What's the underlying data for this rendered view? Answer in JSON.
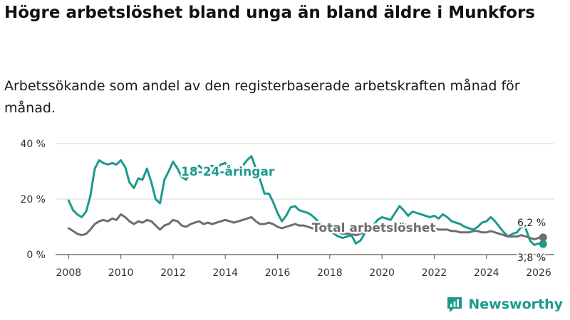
{
  "chart_data": {
    "type": "line",
    "title": "Högre arbetslöshet bland unga än bland äldre i Munkfors",
    "subtitle": "Arbetssökande som andel av den registerbaserade arbetskraften månad för månad.",
    "xlabel": "",
    "ylabel": "",
    "xlim": [
      2007.5,
      2026.6
    ],
    "ylim": [
      0,
      40
    ],
    "y_ticks": [
      0,
      20,
      40
    ],
    "y_tick_labels": [
      "0 %",
      "20 %",
      "40 %"
    ],
    "x_ticks": [
      2008,
      2010,
      2012,
      2014,
      2016,
      2018,
      2020,
      2022,
      2024,
      2026
    ],
    "x_tick_labels": [
      "2008",
      "2010",
      "2012",
      "2014",
      "2016",
      "2018",
      "2020",
      "2022",
      "2024",
      "2026"
    ],
    "grid": true,
    "series": [
      {
        "name": "18-24-åringar",
        "label": "18-24-åringar",
        "color": "#1b9a8c",
        "end_label": "3,8 %",
        "x": [
          2008.0,
          2008.17,
          2008.33,
          2008.5,
          2008.67,
          2008.83,
          2009.0,
          2009.17,
          2009.33,
          2009.5,
          2009.67,
          2009.83,
          2010.0,
          2010.17,
          2010.33,
          2010.5,
          2010.67,
          2010.83,
          2011.0,
          2011.17,
          2011.33,
          2011.5,
          2011.67,
          2011.83,
          2012.0,
          2012.17,
          2012.33,
          2012.5,
          2012.67,
          2012.83,
          2013.0,
          2013.17,
          2013.33,
          2013.5,
          2013.67,
          2013.83,
          2014.0,
          2014.17,
          2014.33,
          2014.5,
          2014.67,
          2014.83,
          2015.0,
          2015.17,
          2015.33,
          2015.5,
          2015.67,
          2015.83,
          2016.0,
          2016.17,
          2016.33,
          2016.5,
          2016.67,
          2016.83,
          2017.0,
          2017.17,
          2017.33,
          2017.5,
          2017.67,
          2017.83,
          2018.0,
          2018.17,
          2018.33,
          2018.5,
          2018.67,
          2018.83,
          2019.0,
          2019.17,
          2019.33,
          2019.5,
          2019.67,
          2019.83,
          2020.0,
          2020.17,
          2020.33,
          2020.5,
          2020.67,
          2020.83,
          2021.0,
          2021.17,
          2021.33,
          2021.5,
          2021.67,
          2021.83,
          2022.0,
          2022.17,
          2022.33,
          2022.5,
          2022.67,
          2022.83,
          2023.0,
          2023.17,
          2023.33,
          2023.5,
          2023.67,
          2023.83,
          2024.0,
          2024.17,
          2024.33,
          2024.5,
          2024.67,
          2024.83,
          2025.0,
          2025.17,
          2025.33,
          2025.5,
          2025.67,
          2025.83,
          2026.0,
          2026.17
        ],
        "values": [
          19.5,
          16.0,
          14.5,
          13.5,
          15.5,
          21.0,
          31.0,
          34.0,
          33.0,
          32.5,
          33.0,
          32.5,
          34.0,
          31.5,
          26.0,
          24.0,
          27.5,
          27.0,
          31.0,
          26.0,
          20.0,
          18.5,
          27.0,
          30.0,
          33.5,
          31.0,
          28.0,
          27.0,
          30.0,
          31.0,
          32.0,
          30.5,
          31.5,
          32.0,
          31.0,
          32.5,
          33.0,
          31.0,
          30.0,
          31.0,
          32.0,
          34.0,
          35.5,
          31.0,
          27.0,
          22.0,
          22.0,
          19.0,
          15.0,
          12.0,
          14.0,
          17.0,
          17.5,
          16.0,
          15.5,
          15.0,
          14.0,
          12.5,
          10.5,
          9.0,
          8.5,
          7.5,
          6.5,
          6.0,
          6.5,
          7.0,
          4.0,
          5.0,
          7.5,
          9.0,
          10.5,
          12.5,
          13.5,
          13.0,
          12.5,
          15.0,
          17.5,
          16.0,
          14.0,
          15.5,
          15.0,
          14.5,
          14.0,
          13.5,
          14.0,
          13.0,
          14.5,
          13.5,
          12.0,
          11.5,
          11.0,
          10.0,
          9.5,
          9.0,
          10.0,
          11.5,
          12.0,
          13.5,
          12.0,
          10.0,
          8.0,
          6.5,
          7.5,
          8.0,
          10.0,
          9.5,
          5.0,
          3.5,
          4.0,
          3.8
        ]
      },
      {
        "name": "Total arbetslöshet",
        "label": "Total arbetslöshet",
        "color": "#6e6e70",
        "end_label": "6,2 %",
        "x": [
          2008.0,
          2008.17,
          2008.33,
          2008.5,
          2008.67,
          2008.83,
          2009.0,
          2009.17,
          2009.33,
          2009.5,
          2009.67,
          2009.83,
          2010.0,
          2010.17,
          2010.33,
          2010.5,
          2010.67,
          2010.83,
          2011.0,
          2011.17,
          2011.33,
          2011.5,
          2011.67,
          2011.83,
          2012.0,
          2012.17,
          2012.33,
          2012.5,
          2012.67,
          2012.83,
          2013.0,
          2013.17,
          2013.33,
          2013.5,
          2013.67,
          2013.83,
          2014.0,
          2014.17,
          2014.33,
          2014.5,
          2014.67,
          2014.83,
          2015.0,
          2015.17,
          2015.33,
          2015.5,
          2015.67,
          2015.83,
          2016.0,
          2016.17,
          2016.33,
          2016.5,
          2016.67,
          2016.83,
          2017.0,
          2017.17,
          2017.33,
          2017.5,
          2017.67,
          2017.83,
          2018.0,
          2018.17,
          2018.33,
          2018.5,
          2018.67,
          2018.83,
          2019.0,
          2019.17,
          2019.33,
          2019.5,
          2019.67,
          2019.83,
          2020.0,
          2020.17,
          2020.33,
          2020.5,
          2020.67,
          2020.83,
          2021.0,
          2021.17,
          2021.33,
          2021.5,
          2021.67,
          2021.83,
          2022.0,
          2022.17,
          2022.33,
          2022.5,
          2022.67,
          2022.83,
          2023.0,
          2023.17,
          2023.33,
          2023.5,
          2023.67,
          2023.83,
          2024.0,
          2024.17,
          2024.33,
          2024.5,
          2024.67,
          2024.83,
          2025.0,
          2025.17,
          2025.33,
          2025.5,
          2025.67,
          2025.83,
          2026.0,
          2026.17
        ],
        "values": [
          9.5,
          8.5,
          7.5,
          7.0,
          7.5,
          9.0,
          11.0,
          12.0,
          12.5,
          12.0,
          13.0,
          12.5,
          14.5,
          13.5,
          12.0,
          11.0,
          12.0,
          11.5,
          12.5,
          12.0,
          10.5,
          9.0,
          10.5,
          11.0,
          12.5,
          12.0,
          10.5,
          10.0,
          11.0,
          11.5,
          12.0,
          11.0,
          11.5,
          11.0,
          11.5,
          12.0,
          12.5,
          12.0,
          11.5,
          12.0,
          12.5,
          13.0,
          13.5,
          12.0,
          11.0,
          11.0,
          11.5,
          11.0,
          10.0,
          9.5,
          10.0,
          10.5,
          11.0,
          10.5,
          10.5,
          10.0,
          9.5,
          9.0,
          9.0,
          8.5,
          8.5,
          8.0,
          8.0,
          7.5,
          7.5,
          7.5,
          7.0,
          7.5,
          8.0,
          8.5,
          9.0,
          9.5,
          10.0,
          10.0,
          10.5,
          11.0,
          11.5,
          11.0,
          10.5,
          10.5,
          10.0,
          10.0,
          9.5,
          9.5,
          9.5,
          9.0,
          9.0,
          9.0,
          8.5,
          8.5,
          8.0,
          8.0,
          8.0,
          8.5,
          8.5,
          8.0,
          8.0,
          8.5,
          8.0,
          7.5,
          7.0,
          6.5,
          6.5,
          6.5,
          7.0,
          6.5,
          6.0,
          5.5,
          6.0,
          6.2
        ]
      }
    ]
  },
  "brand": {
    "name": "Newsworthy",
    "color": "#1b9a8c"
  }
}
